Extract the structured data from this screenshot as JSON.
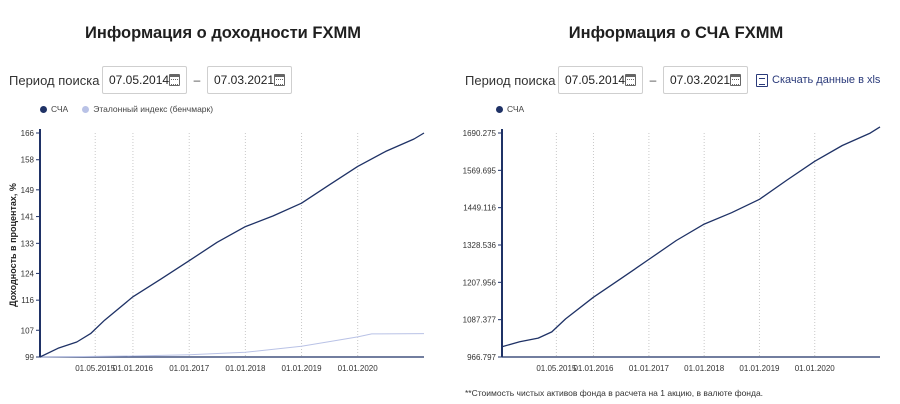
{
  "left": {
    "title": "Информация о доходности FXMM",
    "period_label": "Период поиска",
    "date_from": "07.05.2014",
    "date_to": "07.03.2021",
    "dash": "–",
    "legend": [
      {
        "label": "СЧА",
        "color": "#1f3266"
      },
      {
        "label": "Эталонный индекс (бенчмарк)",
        "color": "#b9c2e6"
      }
    ]
  },
  "right": {
    "title": "Информация о СЧА FXMM",
    "period_label": "Период поиска",
    "date_from": "07.05.2014",
    "date_to": "07.03.2021",
    "dash": "–",
    "download_label": "Скачать данные в xls",
    "legend": [
      {
        "label": "СЧА",
        "color": "#1f3266"
      }
    ],
    "footnote": "**Стоимость чистых активов фонда в расчета на 1 акцию, в валюте фонда."
  },
  "chart_data": [
    {
      "type": "line",
      "title": "",
      "ylabel": "Доходность в процентах, %",
      "xlabel": "",
      "ylim": [
        99,
        166
      ],
      "y_ticks": [
        "99",
        "107",
        "116",
        "124",
        "133",
        "141",
        "149",
        "158",
        "166"
      ],
      "x_range": [
        "2014-05-07",
        "2021-03-07"
      ],
      "x_ticks": [
        "01.05.2015",
        "01.01.2016",
        "01.01.2017",
        "01.01.2018",
        "01.01.2019",
        "01.01.2020"
      ],
      "grid": "vertical dotted",
      "legend_position": "top-left",
      "series": [
        {
          "name": "СЧА",
          "color": "#1f3266",
          "points": [
            [
              "2014-05-07",
              99.0
            ],
            [
              "2014-09-01",
              101.6
            ],
            [
              "2015-01-01",
              103.5
            ],
            [
              "2015-04-01",
              106.0
            ],
            [
              "2015-07-01",
              110.0
            ],
            [
              "2016-01-01",
              117.0
            ],
            [
              "2016-07-01",
              122.3
            ],
            [
              "2017-01-01",
              127.8
            ],
            [
              "2017-07-01",
              133.3
            ],
            [
              "2018-01-01",
              138.0
            ],
            [
              "2018-07-01",
              141.2
            ],
            [
              "2019-01-01",
              145.0
            ],
            [
              "2019-07-01",
              150.5
            ],
            [
              "2020-01-01",
              156.0
            ],
            [
              "2020-07-01",
              160.5
            ],
            [
              "2021-01-01",
              164.2
            ],
            [
              "2021-03-07",
              166.0
            ]
          ]
        },
        {
          "name": "Эталонный индекс (бенчмарк)",
          "color": "#b9c2e6",
          "points": [
            [
              "2014-05-07",
              99.0
            ],
            [
              "2016-01-01",
              99.3
            ],
            [
              "2017-01-01",
              99.7
            ],
            [
              "2018-01-01",
              100.4
            ],
            [
              "2019-01-01",
              102.2
            ],
            [
              "2019-07-01",
              103.6
            ],
            [
              "2020-01-01",
              105.0
            ],
            [
              "2020-04-01",
              105.9
            ],
            [
              "2021-03-07",
              106.0
            ]
          ]
        }
      ]
    },
    {
      "type": "line",
      "title": "",
      "ylabel": "",
      "xlabel": "",
      "ylim": [
        966.797,
        1690.275
      ],
      "y_ticks": [
        "966.797",
        "1087.377",
        "1207.956",
        "1328.536",
        "1449.116",
        "1569.695",
        "1690.275"
      ],
      "x_range": [
        "2014-05-07",
        "2021-03-07"
      ],
      "x_ticks": [
        "01.05.2015",
        "01.01.2016",
        "01.01.2017",
        "01.01.2018",
        "01.01.2019",
        "01.01.2020"
      ],
      "grid": "vertical dotted",
      "legend_position": "top-left",
      "series": [
        {
          "name": "СЧА",
          "color": "#1f3266",
          "points": [
            [
              "2014-05-07",
              1000.0
            ],
            [
              "2014-09-01",
              1016.0
            ],
            [
              "2015-01-01",
              1028.0
            ],
            [
              "2015-04-01",
              1048.0
            ],
            [
              "2015-07-01",
              1090.0
            ],
            [
              "2016-01-01",
              1160.0
            ],
            [
              "2016-07-01",
              1220.0
            ],
            [
              "2017-01-01",
              1282.0
            ],
            [
              "2017-07-01",
              1343.0
            ],
            [
              "2018-01-01",
              1396.0
            ],
            [
              "2018-07-01",
              1433.0
            ],
            [
              "2019-01-01",
              1476.0
            ],
            [
              "2019-07-01",
              1538.0
            ],
            [
              "2020-01-01",
              1599.0
            ],
            [
              "2020-07-01",
              1650.0
            ],
            [
              "2021-01-01",
              1690.0
            ],
            [
              "2021-03-07",
              1710.0
            ]
          ]
        }
      ]
    }
  ]
}
